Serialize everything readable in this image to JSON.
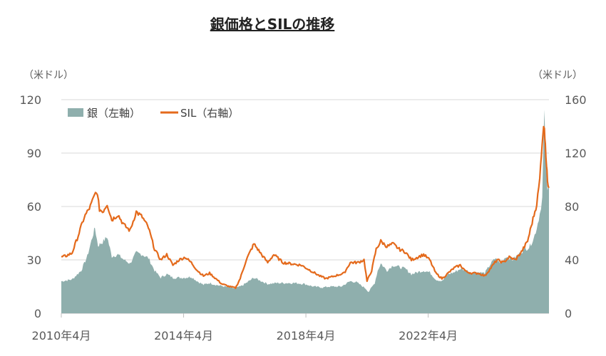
{
  "chart_data": {
    "type": "area+line",
    "title": "銀価格とSILの推移",
    "y_left_unit": "（米ドル）",
    "y_right_unit": "（米ドル）",
    "y_left_ticks": [
      "0",
      "30",
      "60",
      "90",
      "120"
    ],
    "y_right_ticks": [
      "0",
      "40",
      "80",
      "120",
      "160"
    ],
    "ylim_left": [
      0,
      120
    ],
    "ylim_right": [
      0,
      160
    ],
    "x_ticks": [
      {
        "label": "2010年4月",
        "x": 2010.25
      },
      {
        "label": "2014年4月",
        "x": 2014.25
      },
      {
        "label": "2018年4月",
        "x": 2018.25
      },
      {
        "label": "2022年4月",
        "x": 2022.25
      }
    ],
    "xlim": [
      2010.25,
      2026.2
    ],
    "grid": true,
    "legend_position": "top-left",
    "series": [
      {
        "name": "銀（左軸）",
        "kind": "area",
        "axis": "left",
        "color": "#8fafad",
        "points": [
          [
            2010.25,
            18
          ],
          [
            2010.6,
            19
          ],
          [
            2010.9,
            24
          ],
          [
            2011.1,
            32
          ],
          [
            2011.3,
            45
          ],
          [
            2011.35,
            48
          ],
          [
            2011.45,
            38
          ],
          [
            2011.6,
            40
          ],
          [
            2011.75,
            43
          ],
          [
            2011.9,
            32
          ],
          [
            2012.1,
            33
          ],
          [
            2012.3,
            30
          ],
          [
            2012.5,
            28
          ],
          [
            2012.7,
            34
          ],
          [
            2012.9,
            33
          ],
          [
            2013.1,
            31
          ],
          [
            2013.3,
            24
          ],
          [
            2013.5,
            20
          ],
          [
            2013.7,
            22
          ],
          [
            2013.9,
            20
          ],
          [
            2014.1,
            20
          ],
          [
            2014.3,
            20
          ],
          [
            2014.5,
            20.5
          ],
          [
            2014.7,
            18
          ],
          [
            2014.9,
            16
          ],
          [
            2015.1,
            17
          ],
          [
            2015.3,
            16
          ],
          [
            2015.6,
            15
          ],
          [
            2015.9,
            14
          ],
          [
            2016.1,
            15
          ],
          [
            2016.3,
            17
          ],
          [
            2016.55,
            20
          ],
          [
            2016.8,
            18
          ],
          [
            2017.0,
            16.5
          ],
          [
            2017.3,
            17
          ],
          [
            2017.6,
            17
          ],
          [
            2017.9,
            17
          ],
          [
            2018.2,
            16.5
          ],
          [
            2018.5,
            15
          ],
          [
            2018.8,
            14.5
          ],
          [
            2019.0,
            15
          ],
          [
            2019.4,
            15
          ],
          [
            2019.7,
            18
          ],
          [
            2019.9,
            17.5
          ],
          [
            2020.2,
            14
          ],
          [
            2020.3,
            12
          ],
          [
            2020.5,
            17
          ],
          [
            2020.6,
            24
          ],
          [
            2020.7,
            28
          ],
          [
            2020.9,
            24
          ],
          [
            2021.1,
            27
          ],
          [
            2021.3,
            26
          ],
          [
            2021.5,
            25
          ],
          [
            2021.7,
            22
          ],
          [
            2021.9,
            23
          ],
          [
            2022.1,
            24
          ],
          [
            2022.3,
            23
          ],
          [
            2022.5,
            19
          ],
          [
            2022.7,
            18
          ],
          [
            2022.9,
            22
          ],
          [
            2023.1,
            23
          ],
          [
            2023.3,
            25
          ],
          [
            2023.5,
            24
          ],
          [
            2023.7,
            23
          ],
          [
            2023.9,
            23
          ],
          [
            2024.1,
            22.5
          ],
          [
            2024.3,
            28
          ],
          [
            2024.45,
            31
          ],
          [
            2024.6,
            28
          ],
          [
            2024.8,
            32
          ],
          [
            2025.0,
            30
          ],
          [
            2025.2,
            33
          ],
          [
            2025.4,
            36
          ],
          [
            2025.55,
            37
          ],
          [
            2025.7,
            42
          ],
          [
            2025.8,
            48
          ],
          [
            2025.9,
            56
          ],
          [
            2025.98,
            65
          ],
          [
            2026.0,
            80
          ],
          [
            2026.05,
            116
          ],
          [
            2026.08,
            90
          ],
          [
            2026.12,
            80
          ],
          [
            2026.15,
            70
          ],
          [
            2026.2,
            72
          ]
        ]
      },
      {
        "name": "SIL（右軸）",
        "kind": "line",
        "axis": "right",
        "color": "#e46a1c",
        "points": [
          [
            2010.25,
            42
          ],
          [
            2010.4,
            43
          ],
          [
            2010.6,
            45
          ],
          [
            2010.8,
            58
          ],
          [
            2011.0,
            72
          ],
          [
            2011.2,
            80
          ],
          [
            2011.3,
            86
          ],
          [
            2011.4,
            92
          ],
          [
            2011.5,
            78
          ],
          [
            2011.6,
            76
          ],
          [
            2011.75,
            82
          ],
          [
            2011.9,
            70
          ],
          [
            2012.1,
            74
          ],
          [
            2012.3,
            66
          ],
          [
            2012.5,
            62
          ],
          [
            2012.7,
            76
          ],
          [
            2012.9,
            72
          ],
          [
            2013.1,
            64
          ],
          [
            2013.3,
            48
          ],
          [
            2013.5,
            40
          ],
          [
            2013.7,
            44
          ],
          [
            2013.9,
            36
          ],
          [
            2014.1,
            40
          ],
          [
            2014.3,
            42
          ],
          [
            2014.5,
            38
          ],
          [
            2014.7,
            32
          ],
          [
            2014.9,
            28
          ],
          [
            2015.1,
            30
          ],
          [
            2015.3,
            26
          ],
          [
            2015.5,
            22
          ],
          [
            2015.75,
            20
          ],
          [
            2015.95,
            19
          ],
          [
            2016.1,
            26
          ],
          [
            2016.3,
            40
          ],
          [
            2016.55,
            52
          ],
          [
            2016.8,
            44
          ],
          [
            2017.0,
            38
          ],
          [
            2017.2,
            44
          ],
          [
            2017.5,
            38
          ],
          [
            2017.8,
            37
          ],
          [
            2018.1,
            36
          ],
          [
            2018.4,
            32
          ],
          [
            2018.7,
            28
          ],
          [
            2018.9,
            26
          ],
          [
            2019.2,
            28
          ],
          [
            2019.5,
            30
          ],
          [
            2019.7,
            38
          ],
          [
            2019.95,
            38
          ],
          [
            2020.15,
            40
          ],
          [
            2020.25,
            24
          ],
          [
            2020.4,
            32
          ],
          [
            2020.55,
            48
          ],
          [
            2020.7,
            54
          ],
          [
            2020.9,
            50
          ],
          [
            2021.1,
            52
          ],
          [
            2021.3,
            48
          ],
          [
            2021.5,
            46
          ],
          [
            2021.7,
            40
          ],
          [
            2021.9,
            42
          ],
          [
            2022.1,
            44
          ],
          [
            2022.3,
            40
          ],
          [
            2022.5,
            30
          ],
          [
            2022.7,
            26
          ],
          [
            2022.9,
            30
          ],
          [
            2023.1,
            34
          ],
          [
            2023.3,
            36
          ],
          [
            2023.5,
            31
          ],
          [
            2023.7,
            30
          ],
          [
            2023.9,
            30
          ],
          [
            2024.1,
            28
          ],
          [
            2024.3,
            34
          ],
          [
            2024.5,
            40
          ],
          [
            2024.7,
            38
          ],
          [
            2024.9,
            42
          ],
          [
            2025.1,
            40
          ],
          [
            2025.3,
            46
          ],
          [
            2025.5,
            54
          ],
          [
            2025.65,
            68
          ],
          [
            2025.8,
            82
          ],
          [
            2025.9,
            100
          ],
          [
            2025.95,
            120
          ],
          [
            2026.0,
            135
          ],
          [
            2026.05,
            140
          ],
          [
            2026.08,
            128
          ],
          [
            2026.12,
            110
          ],
          [
            2026.15,
            100
          ],
          [
            2026.2,
            94
          ]
        ]
      }
    ]
  }
}
